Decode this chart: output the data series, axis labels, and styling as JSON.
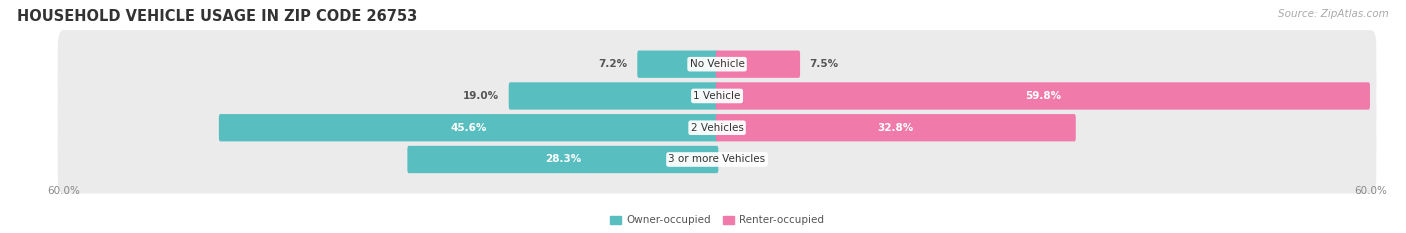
{
  "title": "HOUSEHOLD VEHICLE USAGE IN ZIP CODE 26753",
  "source": "Source: ZipAtlas.com",
  "categories": [
    "No Vehicle",
    "1 Vehicle",
    "2 Vehicles",
    "3 or more Vehicles"
  ],
  "owner_values": [
    7.2,
    19.0,
    45.6,
    28.3
  ],
  "renter_values": [
    7.5,
    59.8,
    32.8,
    0.0
  ],
  "owner_color": "#59bec0",
  "renter_color": "#f07aaa",
  "row_bg_color": "#ebebeb",
  "owner_label": "Owner-occupied",
  "renter_label": "Renter-occupied",
  "x_min": -60.0,
  "x_max": 60.0,
  "background_color": "#ffffff",
  "title_fontsize": 10.5,
  "source_fontsize": 7.5,
  "label_fontsize": 7.5,
  "category_fontsize": 7.5,
  "tick_fontsize": 7.5
}
